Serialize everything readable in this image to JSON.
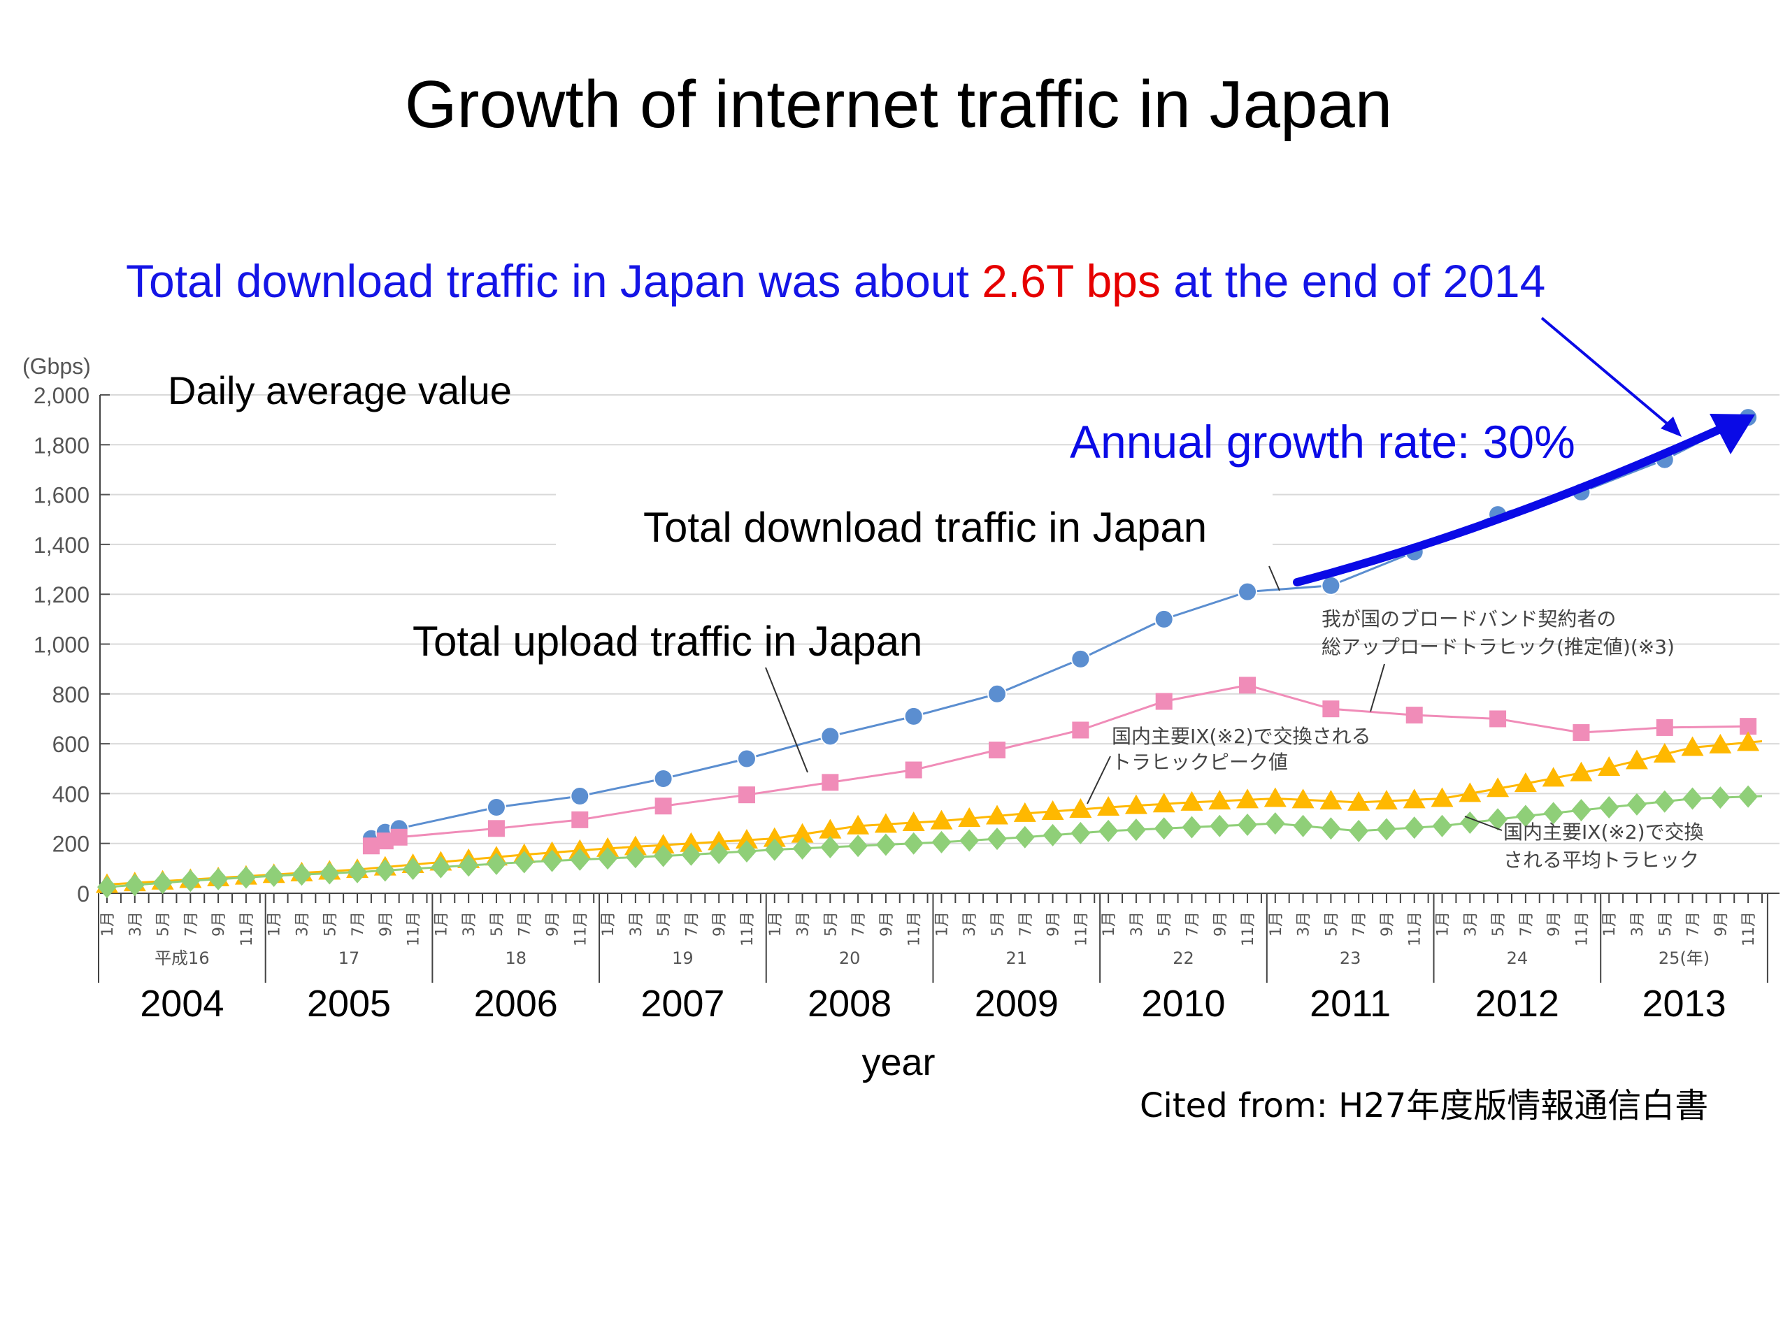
{
  "slide": {
    "title": "Growth of internet traffic in Japan",
    "headline_parts": [
      "Total download traffic in Japan was about ",
      "2.6T bps",
      " at the end of 2014"
    ],
    "subtitle": "Daily average value",
    "growth_note": "Annual growth rate: 30%",
    "citation": "Cited from: H27年度版情報通信白書",
    "colors": {
      "headline": "#1414e6",
      "headline_highlight": "#e60000",
      "arrow": "#0a0ae6",
      "download": "#5b8ed0",
      "upload": "#f08cb8",
      "ix_peak": "#ffb800",
      "ix_avg": "#8fcf78"
    }
  },
  "chart_data": {
    "type": "line",
    "title": "Growth of internet traffic in Japan",
    "ylabel": "(Gbps)",
    "xlabel": "year",
    "ylim": [
      0,
      2000
    ],
    "yticks": [
      0,
      200,
      400,
      600,
      800,
      1000,
      1200,
      1400,
      1600,
      1800,
      2000
    ],
    "ytick_labels": [
      "0",
      "200",
      "400",
      "600",
      "800",
      "1,000",
      "1,200",
      "1,400",
      "1,600",
      "1,800",
      "2,000"
    ],
    "x_unit": "month index (0 = Jan 2004)",
    "xlim": [
      0,
      119
    ],
    "years": [
      "2004",
      "2005",
      "2006",
      "2007",
      "2008",
      "2009",
      "2010",
      "2011",
      "2012",
      "2013"
    ],
    "era_labels": [
      "平成16",
      "17",
      "18",
      "19",
      "20",
      "21",
      "22",
      "23",
      "24",
      "25(年)"
    ],
    "month_labels": [
      "1月",
      "3月",
      "5月",
      "7月",
      "9月",
      "11月"
    ],
    "grid": true,
    "series": [
      {
        "name": "Total download traffic in Japan",
        "marker": "circle",
        "x": [
          19,
          20,
          21,
          28,
          34,
          40,
          46,
          52,
          58,
          64,
          70,
          76,
          82,
          88,
          94,
          100,
          106,
          112,
          118
        ],
        "y": [
          220,
          245,
          260,
          345,
          390,
          460,
          540,
          630,
          710,
          800,
          940,
          1100,
          1210,
          1235,
          1370,
          1520,
          1610,
          1740,
          1910
        ]
      },
      {
        "name": "Total upload traffic in Japan",
        "marker": "square",
        "x": [
          19,
          20,
          21,
          28,
          34,
          40,
          46,
          52,
          58,
          64,
          70,
          76,
          82,
          88,
          94,
          100,
          106,
          112,
          118
        ],
        "y": [
          190,
          210,
          225,
          260,
          295,
          350,
          395,
          445,
          495,
          575,
          655,
          770,
          835,
          740,
          715,
          700,
          645,
          665,
          670
        ],
        "note": "我が国のブロードバンド契約者の総アップロードトラヒック(推定値)(※3)"
      },
      {
        "name": "国内主要IX(※2)で交換されるトラヒックピーク値",
        "marker": "triangle",
        "x": [
          0,
          6,
          12,
          18,
          24,
          30,
          36,
          42,
          48,
          54,
          60,
          66,
          72,
          78,
          84,
          90,
          96,
          102,
          108,
          114,
          119
        ],
        "y": [
          35,
          55,
          75,
          95,
          125,
          155,
          180,
          200,
          220,
          270,
          290,
          320,
          345,
          365,
          380,
          365,
          380,
          440,
          505,
          585,
          610
        ]
      },
      {
        "name": "国内主要IX(※2)で交換される平均トラヒック",
        "marker": "diamond",
        "x": [
          0,
          6,
          12,
          18,
          24,
          30,
          36,
          42,
          48,
          54,
          60,
          66,
          72,
          78,
          84,
          90,
          96,
          102,
          108,
          114,
          119
        ],
        "y": [
          25,
          50,
          70,
          85,
          105,
          125,
          140,
          155,
          175,
          190,
          205,
          225,
          250,
          265,
          280,
          250,
          270,
          310,
          345,
          380,
          390
        ]
      }
    ],
    "annotations": [
      "Total download traffic in Japan",
      "Total upload traffic in Japan",
      "我が国のブロードバンド契約者の",
      "総アップロードトラヒック(推定値)(※3)",
      "国内主要IX(※2)で交換される",
      "トラヒックピーク値",
      "国内主要IX(※2)で交換",
      "される平均トラヒック"
    ]
  }
}
